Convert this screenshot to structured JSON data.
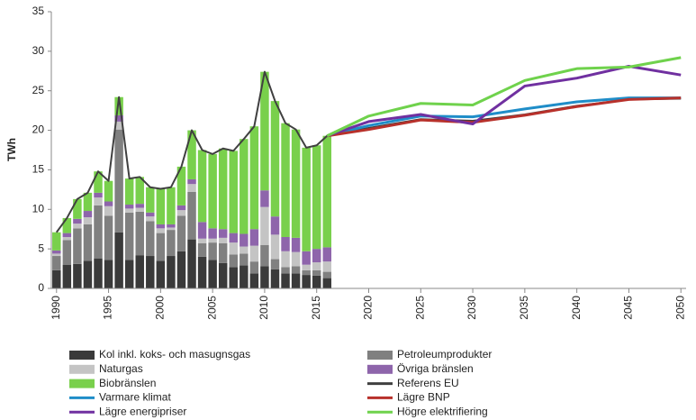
{
  "chart_data": {
    "type": "bar-line",
    "y_label": "TWh",
    "x": [
      1990,
      1991,
      1992,
      1993,
      1994,
      1995,
      1996,
      1997,
      1998,
      1999,
      2000,
      2001,
      2002,
      2003,
      2004,
      2005,
      2006,
      2007,
      2008,
      2009,
      2010,
      2011,
      2012,
      2013,
      2014,
      2015,
      2016,
      2020,
      2025,
      2030,
      2035,
      2040,
      2045,
      2050
    ],
    "xlim": [
      1989.5,
      2050.5
    ],
    "xticks": [
      1990,
      1995,
      2000,
      2005,
      2010,
      2015,
      2020,
      2025,
      2030,
      2035,
      2040,
      2045,
      2050
    ],
    "ylim": [
      0,
      35
    ],
    "yticks": [
      0,
      5,
      10,
      15,
      20,
      25,
      30,
      35
    ],
    "series": [
      {
        "name": "Kol inkl. koks- och masugnsgas",
        "kind": "bar",
        "color": "#3a3a3a",
        "values": [
          2.3,
          3.0,
          3.1,
          3.5,
          3.8,
          3.6,
          7.1,
          3.6,
          4.2,
          4.1,
          3.5,
          4.1,
          4.7,
          6.2,
          4.0,
          3.6,
          3.2,
          2.7,
          2.9,
          1.9,
          2.8,
          2.4,
          1.9,
          1.9,
          1.7,
          1.6,
          1.3,
          null,
          null,
          null,
          null,
          null,
          null,
          null
        ]
      },
      {
        "name": "Petroleumprodukter",
        "kind": "bar",
        "color": "#808080",
        "values": [
          1.8,
          3.1,
          4.5,
          4.6,
          6.7,
          5.6,
          13.0,
          6.0,
          5.5,
          4.4,
          3.5,
          3.3,
          4.5,
          6.0,
          1.7,
          2.2,
          2.5,
          1.6,
          1.5,
          1.5,
          2.7,
          1.3,
          0.8,
          0.9,
          0.6,
          0.7,
          0.8,
          null,
          null,
          null,
          null,
          null,
          null,
          null
        ]
      },
      {
        "name": "Naturgas",
        "kind": "bar",
        "color": "#c4c4c4",
        "values": [
          0.3,
          0.4,
          0.6,
          0.9,
          1.0,
          1.2,
          1.0,
          0.5,
          0.5,
          0.6,
          0.6,
          0.3,
          0.7,
          1.0,
          0.6,
          0.5,
          0.7,
          1.5,
          0.9,
          2.0,
          4.8,
          3.1,
          2.0,
          1.8,
          0.7,
          1.0,
          1.3,
          null,
          null,
          null,
          null,
          null,
          null,
          null
        ]
      },
      {
        "name": "Övriga bränslen",
        "kind": "bar",
        "color": "#8e65ab",
        "values": [
          0.4,
          0.5,
          0.6,
          0.8,
          0.6,
          0.6,
          0.8,
          0.5,
          0.5,
          0.5,
          0.5,
          0.4,
          0.6,
          0.6,
          2.1,
          1.3,
          1.1,
          1.2,
          1.6,
          2.1,
          2.1,
          2.3,
          1.8,
          1.8,
          1.7,
          1.7,
          1.8,
          null,
          null,
          null,
          null,
          null,
          null,
          null
        ]
      },
      {
        "name": "Biobränslen",
        "kind": "bar",
        "color": "#79d04c",
        "values": [
          2.3,
          1.9,
          2.5,
          2.3,
          2.7,
          2.6,
          2.3,
          3.3,
          3.4,
          3.2,
          4.5,
          4.7,
          4.9,
          6.2,
          9.1,
          9.4,
          10.2,
          10.4,
          12.0,
          13.0,
          15.0,
          14.6,
          14.4,
          13.7,
          13.1,
          13.1,
          14.1,
          null,
          null,
          null,
          null,
          null,
          null,
          null
        ]
      },
      {
        "name": "Referens EU",
        "kind": "line",
        "color": "#404040",
        "values": [
          7.1,
          8.9,
          11.3,
          12.1,
          14.8,
          13.6,
          24.2,
          13.9,
          14.1,
          12.8,
          12.6,
          12.8,
          15.4,
          20.0,
          17.5,
          17.0,
          17.7,
          17.4,
          18.9,
          20.5,
          27.4,
          23.7,
          20.9,
          20.1,
          17.8,
          18.1,
          19.3,
          20.3,
          21.4,
          21.2,
          22.0,
          23.1,
          23.9,
          24.0
        ]
      },
      {
        "name": "Varmare klimat",
        "kind": "line",
        "color": "#1f8dc8",
        "values": [
          null,
          null,
          null,
          null,
          null,
          null,
          null,
          null,
          null,
          null,
          null,
          null,
          null,
          null,
          null,
          null,
          null,
          null,
          null,
          null,
          null,
          null,
          null,
          null,
          null,
          null,
          19.3,
          20.6,
          21.8,
          21.7,
          22.7,
          23.6,
          24.1,
          24.1
        ]
      },
      {
        "name": "Lägre BNP",
        "kind": "line",
        "color": "#b8312b",
        "values": [
          null,
          null,
          null,
          null,
          null,
          null,
          null,
          null,
          null,
          null,
          null,
          null,
          null,
          null,
          null,
          null,
          null,
          null,
          null,
          null,
          null,
          null,
          null,
          null,
          null,
          null,
          19.3,
          20.1,
          21.3,
          21.0,
          21.9,
          23.0,
          23.9,
          24.1
        ]
      },
      {
        "name": "Lägre energipriser",
        "kind": "line",
        "color": "#7030a0",
        "values": [
          null,
          null,
          null,
          null,
          null,
          null,
          null,
          null,
          null,
          null,
          null,
          null,
          null,
          null,
          null,
          null,
          null,
          null,
          null,
          null,
          null,
          null,
          null,
          null,
          null,
          null,
          19.3,
          21.1,
          22.0,
          20.8,
          25.6,
          26.6,
          28.1,
          27.0
        ]
      },
      {
        "name": "Högre elektrifiering",
        "kind": "line",
        "color": "#6fd24c",
        "values": [
          null,
          null,
          null,
          null,
          null,
          null,
          null,
          null,
          null,
          null,
          null,
          null,
          null,
          null,
          null,
          null,
          null,
          null,
          null,
          null,
          null,
          null,
          null,
          null,
          null,
          null,
          19.3,
          21.8,
          23.4,
          23.2,
          26.3,
          27.8,
          28.0,
          29.2
        ]
      }
    ]
  }
}
